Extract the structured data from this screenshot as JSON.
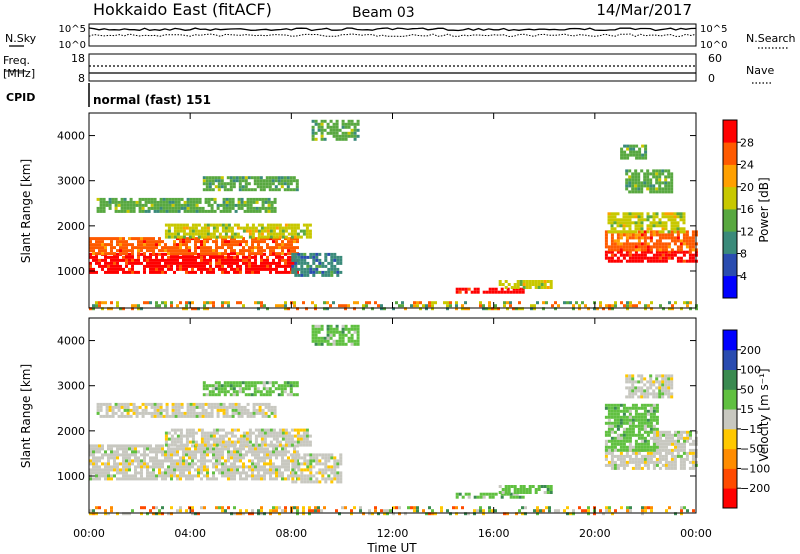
{
  "header": {
    "station": "Hokkaido East (fitACF)",
    "beam": "Beam 03",
    "date": "14/Mar/2017"
  },
  "noise_panel": {
    "left_label": "N.Sky",
    "right_label": "N.Search",
    "left_ticks": [
      "10^5",
      "10^0"
    ],
    "right_ticks": [
      "10^5",
      "10^0"
    ]
  },
  "freq_panel": {
    "left_label_1": "Freq.",
    "left_label_2": "[MHz]",
    "right_label": "Nave",
    "left_ticks": [
      "18",
      "8"
    ],
    "right_ticks": [
      "60",
      "0"
    ]
  },
  "cpid_panel": {
    "label": "CPID",
    "mode": "normal (fast) 151"
  },
  "colors": {
    "power_scale": [
      "#0000ff",
      "#2a4cb0",
      "#3a8a7a",
      "#58a840",
      "#c8c800",
      "#ffa000",
      "#ff5a00",
      "#ff0000"
    ],
    "velocity_scale": [
      "#ff0000",
      "#ff4a00",
      "#ff8c00",
      "#ffc800",
      "#c8c8c0",
      "#60c040",
      "#3a8a50",
      "#2a4cb0",
      "#0000ff"
    ]
  },
  "chart_data": [
    {
      "type": "heatmap",
      "name": "power",
      "ylabel": "Slant Range [km]",
      "yticks": [
        "1000",
        "2000",
        "3000",
        "4000"
      ],
      "ylim": [
        180,
        4500
      ],
      "xlim": [
        0,
        24
      ],
      "colorbar_label": "Power [dB]",
      "colorbar_ticks": [
        "4",
        "8",
        "12",
        "16",
        "20",
        "24",
        "28"
      ],
      "colorbar_range": [
        0,
        32
      ],
      "regions": [
        {
          "t0": 0.0,
          "t1": 8.2,
          "r0": 1000,
          "r1": 1400,
          "level": 7
        },
        {
          "t0": 0.0,
          "t1": 8.2,
          "r0": 1400,
          "r1": 1750,
          "level": 6
        },
        {
          "t0": 3.0,
          "t1": 8.8,
          "r0": 1750,
          "r1": 2050,
          "level": 4
        },
        {
          "t0": 0.3,
          "t1": 7.3,
          "r0": 2300,
          "r1": 2620,
          "level": 3
        },
        {
          "t0": 4.5,
          "t1": 8.2,
          "r0": 2800,
          "r1": 3100,
          "level": 3
        },
        {
          "t0": 8.0,
          "t1": 10.0,
          "r0": 900,
          "r1": 1400,
          "level": 2
        },
        {
          "t0": 8.8,
          "t1": 10.6,
          "r0": 3900,
          "r1": 4350,
          "level": 3
        },
        {
          "t0": 14.5,
          "t1": 17.2,
          "r0": 520,
          "r1": 630,
          "level": 7
        },
        {
          "t0": 16.2,
          "t1": 18.3,
          "r0": 650,
          "r1": 800,
          "level": 4
        },
        {
          "t0": 20.4,
          "t1": 24.0,
          "r0": 1200,
          "r1": 1450,
          "level": 7
        },
        {
          "t0": 20.4,
          "t1": 24.0,
          "r0": 1450,
          "r1": 1900,
          "level": 6
        },
        {
          "t0": 20.5,
          "t1": 23.5,
          "r0": 1900,
          "r1": 2300,
          "level": 4
        },
        {
          "t0": 21.2,
          "t1": 23.0,
          "r0": 2750,
          "r1": 3250,
          "level": 3
        },
        {
          "t0": 21.0,
          "t1": 22.0,
          "r0": 3500,
          "r1": 3800,
          "level": 3
        },
        {
          "t0": 0.0,
          "t1": 24.0,
          "r0": 180,
          "r1": 330,
          "level": 3
        }
      ]
    },
    {
      "type": "heatmap",
      "name": "velocity",
      "ylabel": "Slant Range [km]",
      "xlabel": "Time UT",
      "xticks": [
        "00:00",
        "04:00",
        "08:00",
        "12:00",
        "16:00",
        "20:00",
        "00:00"
      ],
      "yticks": [
        "1000",
        "2000",
        "3000",
        "4000"
      ],
      "ylim": [
        180,
        4500
      ],
      "xlim": [
        0,
        24
      ],
      "colorbar_label": "Velocity [m s⁻¹]",
      "colorbar_ticks": [
        "200",
        "100",
        "50",
        "15",
        "−15",
        "−50",
        "−100",
        "−200"
      ],
      "regions": [
        {
          "t0": 0.0,
          "t1": 8.2,
          "r0": 950,
          "r1": 1700,
          "level": 4
        },
        {
          "t0": 3.0,
          "t1": 8.8,
          "r0": 1700,
          "r1": 2050,
          "level": 4
        },
        {
          "t0": 0.3,
          "t1": 7.3,
          "r0": 2300,
          "r1": 2620,
          "level": 4
        },
        {
          "t0": 4.5,
          "t1": 8.2,
          "r0": 2800,
          "r1": 3100,
          "level": 5
        },
        {
          "t0": 8.0,
          "t1": 10.0,
          "r0": 900,
          "r1": 1500,
          "level": 4
        },
        {
          "t0": 8.8,
          "t1": 10.6,
          "r0": 3900,
          "r1": 4350,
          "level": 5
        },
        {
          "t0": 14.5,
          "t1": 17.2,
          "r0": 520,
          "r1": 630,
          "level": 5
        },
        {
          "t0": 16.2,
          "t1": 18.3,
          "r0": 650,
          "r1": 800,
          "level": 5
        },
        {
          "t0": 20.4,
          "t1": 24.0,
          "r0": 1200,
          "r1": 1600,
          "level": 4
        },
        {
          "t0": 20.4,
          "t1": 22.5,
          "r0": 1600,
          "r1": 2600,
          "level": 5
        },
        {
          "t0": 22.3,
          "t1": 24.0,
          "r0": 1650,
          "r1": 2000,
          "level": 4
        },
        {
          "t0": 21.2,
          "t1": 23.0,
          "r0": 2750,
          "r1": 3250,
          "level": 4
        },
        {
          "t0": 0.0,
          "t1": 24.0,
          "r0": 180,
          "r1": 330,
          "level": 3
        }
      ]
    }
  ]
}
